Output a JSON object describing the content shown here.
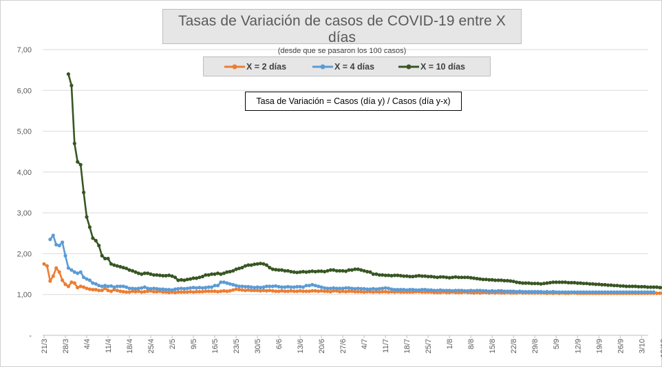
{
  "chart_data": {
    "type": "line",
    "title": "Tasas de Variación de casos de COVID-19 entre X días",
    "subtitle": "(desde que se pasaron los 100 casos)",
    "annotation": "Tasa de Variación = Casos (día y) / Casos (día y-x)",
    "xlabel": "",
    "ylabel": "",
    "ylim": [
      0,
      7
    ],
    "y_ticks": [
      "-",
      "1,00",
      "2,00",
      "3,00",
      "4,00",
      "5,00",
      "6,00",
      "7,00"
    ],
    "x_tick_labels": [
      "21/3",
      "28/3",
      "4/4",
      "11/4",
      "18/4",
      "25/4",
      "2/5",
      "9/5",
      "16/5",
      "23/5",
      "30/5",
      "6/6",
      "13/6",
      "20/6",
      "27/6",
      "4/7",
      "11/7",
      "18/7",
      "25/7",
      "1/8",
      "8/8",
      "15/8",
      "22/8",
      "29/8",
      "5/9",
      "12/9",
      "19/9",
      "26/9",
      "3/10",
      "10/10"
    ],
    "grid": "horizontal",
    "legend_position": "top",
    "series": [
      {
        "name": "X = 2 días",
        "color": "#ED7D31",
        "start_day": 0,
        "values": [
          1.75,
          1.7,
          1.33,
          1.45,
          1.65,
          1.55,
          1.35,
          1.25,
          1.2,
          1.3,
          1.28,
          1.17,
          1.2,
          1.18,
          1.15,
          1.13,
          1.12,
          1.12,
          1.1,
          1.1,
          1.15,
          1.1,
          1.08,
          1.12,
          1.1,
          1.08,
          1.07,
          1.06,
          1.06,
          1.08,
          1.07,
          1.08,
          1.06,
          1.07,
          1.08,
          1.09,
          1.07,
          1.07,
          1.08,
          1.06,
          1.06,
          1.05,
          1.06,
          1.05,
          1.06,
          1.06,
          1.06,
          1.06,
          1.07,
          1.06,
          1.07,
          1.07,
          1.07,
          1.08,
          1.08,
          1.08,
          1.08,
          1.07,
          1.08,
          1.09,
          1.08,
          1.09,
          1.11,
          1.13,
          1.12,
          1.11,
          1.1,
          1.11,
          1.1,
          1.1,
          1.1,
          1.09,
          1.1,
          1.09,
          1.1,
          1.09,
          1.08,
          1.08,
          1.09,
          1.08,
          1.08,
          1.09,
          1.08,
          1.08,
          1.09,
          1.08,
          1.08,
          1.08,
          1.09,
          1.09,
          1.08,
          1.09,
          1.08,
          1.08,
          1.07,
          1.09,
          1.09,
          1.07,
          1.08,
          1.07,
          1.08,
          1.08,
          1.07,
          1.07,
          1.07,
          1.06,
          1.07,
          1.07,
          1.06,
          1.07,
          1.06,
          1.07,
          1.07,
          1.06,
          1.07,
          1.06,
          1.07,
          1.06,
          1.06,
          1.06,
          1.06,
          1.06,
          1.07,
          1.07,
          1.06,
          1.06,
          1.06,
          1.06,
          1.05,
          1.05,
          1.05,
          1.06,
          1.05,
          1.05,
          1.06,
          1.05,
          1.05,
          1.05,
          1.06,
          1.05,
          1.05,
          1.04,
          1.05,
          1.04,
          1.05,
          1.05,
          1.04,
          1.05,
          1.04,
          1.05,
          1.04,
          1.04,
          1.05,
          1.04,
          1.04,
          1.04,
          1.05,
          1.04,
          1.04,
          1.04,
          1.04,
          1.04,
          1.04,
          1.04,
          1.04,
          1.03,
          1.04,
          1.03,
          1.04,
          1.03,
          1.04,
          1.03,
          1.03,
          1.04,
          1.04,
          1.03,
          1.03,
          1.03,
          1.03,
          1.03,
          1.03,
          1.03,
          1.03,
          1.03,
          1.03,
          1.03,
          1.03,
          1.03,
          1.03,
          1.03,
          1.03,
          1.03,
          1.03,
          1.03,
          1.03,
          1.03,
          1.03,
          1.03,
          1.03,
          1.03,
          1.03,
          1.03,
          1.03,
          1.03,
          1.03,
          1.03,
          1.03,
          1.03
        ]
      },
      {
        "name": "X = 4 días",
        "color": "#5B9BD5",
        "start_day": 2,
        "values": [
          2.35,
          2.45,
          2.22,
          2.2,
          2.28,
          1.95,
          1.65,
          1.6,
          1.55,
          1.52,
          1.55,
          1.42,
          1.38,
          1.35,
          1.28,
          1.26,
          1.22,
          1.2,
          1.22,
          1.2,
          1.21,
          1.18,
          1.2,
          1.2,
          1.2,
          1.18,
          1.15,
          1.15,
          1.14,
          1.15,
          1.16,
          1.18,
          1.15,
          1.14,
          1.15,
          1.14,
          1.13,
          1.13,
          1.12,
          1.12,
          1.11,
          1.13,
          1.14,
          1.15,
          1.14,
          1.15,
          1.16,
          1.17,
          1.16,
          1.17,
          1.16,
          1.17,
          1.18,
          1.18,
          1.22,
          1.22,
          1.3,
          1.3,
          1.28,
          1.26,
          1.24,
          1.22,
          1.2,
          1.2,
          1.19,
          1.19,
          1.18,
          1.17,
          1.18,
          1.17,
          1.18,
          1.2,
          1.2,
          1.2,
          1.21,
          1.19,
          1.18,
          1.18,
          1.19,
          1.18,
          1.18,
          1.19,
          1.19,
          1.18,
          1.22,
          1.22,
          1.24,
          1.22,
          1.2,
          1.18,
          1.16,
          1.15,
          1.15,
          1.16,
          1.15,
          1.15,
          1.15,
          1.16,
          1.16,
          1.15,
          1.14,
          1.15,
          1.14,
          1.14,
          1.13,
          1.13,
          1.14,
          1.13,
          1.14,
          1.15,
          1.16,
          1.15,
          1.13,
          1.12,
          1.12,
          1.12,
          1.12,
          1.11,
          1.12,
          1.12,
          1.11,
          1.11,
          1.12,
          1.12,
          1.11,
          1.11,
          1.1,
          1.1,
          1.11,
          1.1,
          1.1,
          1.1,
          1.09,
          1.1,
          1.1,
          1.1,
          1.09,
          1.09,
          1.1,
          1.09,
          1.1,
          1.1,
          1.09,
          1.09,
          1.08,
          1.09,
          1.08,
          1.09,
          1.09,
          1.08,
          1.08,
          1.08,
          1.08,
          1.07,
          1.08,
          1.07,
          1.07,
          1.07,
          1.07,
          1.07,
          1.07,
          1.07,
          1.06,
          1.07,
          1.06,
          1.07,
          1.06,
          1.06,
          1.06,
          1.06,
          1.06,
          1.06,
          1.06,
          1.06,
          1.06,
          1.06,
          1.06,
          1.06,
          1.06,
          1.06,
          1.06,
          1.06,
          1.06,
          1.06,
          1.06,
          1.06,
          1.06,
          1.06,
          1.06,
          1.06,
          1.06,
          1.06,
          1.06,
          1.06,
          1.06,
          1.06,
          1.06,
          1.06,
          1.06
        ]
      },
      {
        "name": "X = 10 días",
        "color": "#375623",
        "start_day": 8,
        "values": [
          6.4,
          6.12,
          4.7,
          4.25,
          4.18,
          3.5,
          2.9,
          2.65,
          2.38,
          2.32,
          2.2,
          1.95,
          1.88,
          1.88,
          1.75,
          1.72,
          1.7,
          1.68,
          1.66,
          1.64,
          1.6,
          1.58,
          1.55,
          1.52,
          1.5,
          1.52,
          1.52,
          1.5,
          1.48,
          1.48,
          1.47,
          1.46,
          1.46,
          1.47,
          1.45,
          1.42,
          1.35,
          1.36,
          1.35,
          1.37,
          1.38,
          1.4,
          1.4,
          1.42,
          1.44,
          1.48,
          1.48,
          1.5,
          1.5,
          1.52,
          1.5,
          1.52,
          1.55,
          1.56,
          1.58,
          1.62,
          1.64,
          1.66,
          1.7,
          1.72,
          1.72,
          1.74,
          1.75,
          1.76,
          1.75,
          1.72,
          1.66,
          1.62,
          1.61,
          1.6,
          1.6,
          1.58,
          1.58,
          1.56,
          1.55,
          1.54,
          1.55,
          1.56,
          1.55,
          1.56,
          1.57,
          1.56,
          1.57,
          1.57,
          1.56,
          1.58,
          1.6,
          1.6,
          1.58,
          1.58,
          1.58,
          1.57,
          1.6,
          1.6,
          1.62,
          1.62,
          1.6,
          1.58,
          1.56,
          1.55,
          1.5,
          1.5,
          1.48,
          1.48,
          1.47,
          1.47,
          1.46,
          1.47,
          1.47,
          1.46,
          1.45,
          1.45,
          1.44,
          1.44,
          1.45,
          1.46,
          1.45,
          1.45,
          1.44,
          1.44,
          1.43,
          1.42,
          1.43,
          1.43,
          1.42,
          1.41,
          1.42,
          1.43,
          1.42,
          1.42,
          1.42,
          1.42,
          1.41,
          1.4,
          1.39,
          1.38,
          1.37,
          1.37,
          1.36,
          1.36,
          1.35,
          1.35,
          1.35,
          1.34,
          1.34,
          1.33,
          1.32,
          1.3,
          1.29,
          1.28,
          1.28,
          1.28,
          1.27,
          1.27,
          1.27,
          1.26,
          1.27,
          1.28,
          1.29,
          1.3,
          1.3,
          1.3,
          1.3,
          1.3,
          1.29,
          1.29,
          1.29,
          1.28,
          1.28,
          1.27,
          1.27,
          1.26,
          1.26,
          1.25,
          1.25,
          1.24,
          1.24,
          1.23,
          1.23,
          1.22,
          1.22,
          1.21,
          1.21,
          1.2,
          1.2,
          1.2,
          1.2,
          1.19,
          1.19,
          1.19,
          1.18,
          1.18,
          1.18,
          1.18,
          1.17,
          1.17,
          1.17,
          1.17,
          1.16,
          1.16,
          1.16,
          1.15
        ]
      }
    ]
  }
}
